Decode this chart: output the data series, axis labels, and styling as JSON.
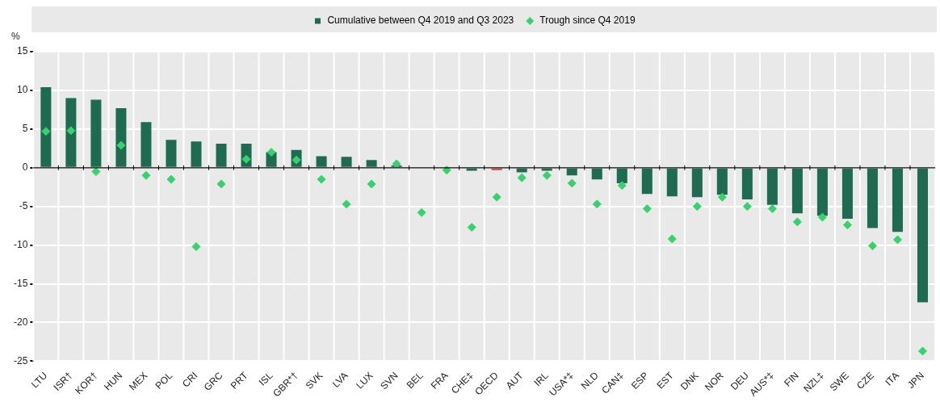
{
  "chart_data": {
    "type": "bar",
    "ylabel": "%",
    "legend": "top",
    "grid": true,
    "marker": "diamond",
    "categories": [
      "LTU",
      "ISR†",
      "KOR†",
      "HUN",
      "MEX",
      "POL",
      "CRI",
      "GRC",
      "PRT",
      "ISL",
      "GBR*†",
      "SVK",
      "LVA",
      "LUX",
      "SVN",
      "BEL",
      "FRA",
      "CHE‡",
      "OECD",
      "AUT",
      "IRL",
      "USA*‡",
      "NLD",
      "CAN‡",
      "ESP",
      "EST",
      "DNK",
      "NOR",
      "DEU",
      "AUS*‡",
      "FIN",
      "NZL‡",
      "SWE",
      "CZE",
      "ITA",
      "JPN"
    ],
    "ylim": [
      -25,
      15
    ],
    "yticks": [
      -25,
      -20,
      -15,
      -10,
      -5,
      0,
      5,
      10,
      15
    ],
    "series": [
      {
        "name": "Cumulative between Q4 2019 and Q3 2023",
        "color": "#1e6b52",
        "colors": [
          "#1e6b52",
          "#1e6b52",
          "#1e6b52",
          "#1e6b52",
          "#1e6b52",
          "#1e6b52",
          "#1e6b52",
          "#1e6b52",
          "#1e6b52",
          "#1e6b52",
          "#1e6b52",
          "#1e6b52",
          "#1e6b52",
          "#1e6b52",
          "#1e6b52",
          "#1e6b52",
          "#1e6b52",
          "#1e6b52",
          "#e0403a",
          "#1e6b52",
          "#1e6b52",
          "#1e6b52",
          "#1e6b52",
          "#1e6b52",
          "#1e6b52",
          "#1e6b52",
          "#1e6b52",
          "#1e6b52",
          "#1e6b52",
          "#1e6b52",
          "#1e6b52",
          "#1e6b52",
          "#1e6b52",
          "#1e6b52",
          "#1e6b52",
          "#1e6b52"
        ],
        "values": [
          10.4,
          9.0,
          8.8,
          7.7,
          5.9,
          3.6,
          3.4,
          3.1,
          3.1,
          2.0,
          2.3,
          1.5,
          1.4,
          1.0,
          0.3,
          -0.1,
          -0.1,
          -0.4,
          -0.3,
          -0.6,
          -0.4,
          -1.0,
          -1.5,
          -2.0,
          -3.4,
          -3.7,
          -3.8,
          -3.5,
          -4.1,
          -4.8,
          -5.9,
          -6.2,
          -6.6,
          -7.8,
          -8.3,
          -17.4
        ]
      },
      {
        "name": "Trough since Q4 2019",
        "type": "scatter",
        "color": "#35d36b",
        "values": [
          4.7,
          4.8,
          -0.5,
          2.9,
          -1.0,
          -1.5,
          -10.2,
          -2.1,
          1.1,
          2.0,
          1.0,
          -1.5,
          -4.7,
          -2.1,
          0.5,
          -5.8,
          -0.3,
          -7.7,
          -3.8,
          -1.3,
          -1.0,
          -2.0,
          -4.7,
          -2.3,
          -5.3,
          -9.2,
          -5.0,
          -3.8,
          -5.0,
          -5.3,
          -7.0,
          -6.4,
          -7.4,
          -10.1,
          -9.3,
          -23.7
        ]
      }
    ]
  }
}
